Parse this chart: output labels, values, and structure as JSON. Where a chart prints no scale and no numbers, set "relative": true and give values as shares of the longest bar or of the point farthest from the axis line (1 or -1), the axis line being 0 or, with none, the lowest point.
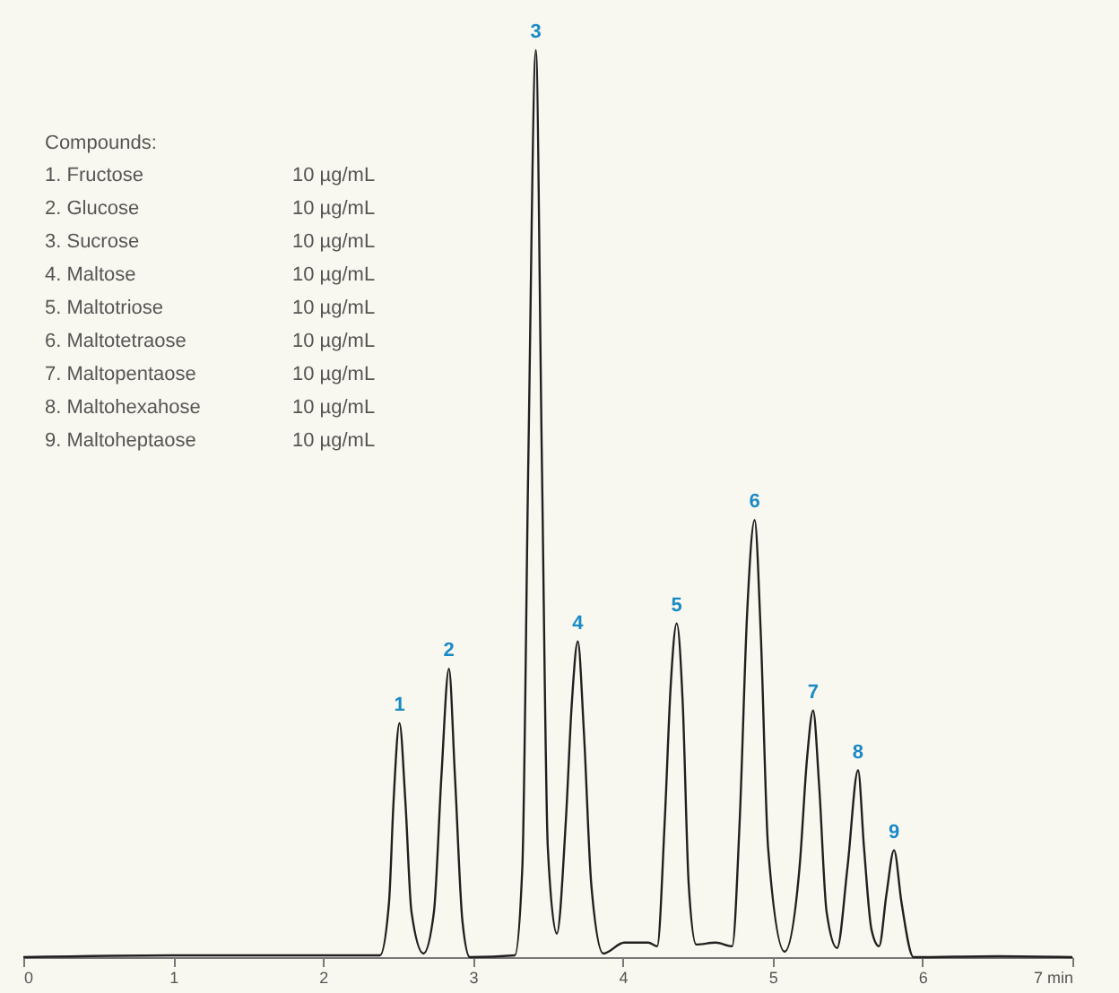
{
  "chart_data": {
    "type": "line",
    "relative": true,
    "tick_labels": "x",
    "x": [
      0,
      1.0,
      2.0,
      2.38,
      2.44,
      2.47,
      2.51,
      2.55,
      2.59,
      2.67,
      2.74,
      2.79,
      2.84,
      2.88,
      2.93,
      2.98,
      3.28,
      3.33,
      3.37,
      3.42,
      3.46,
      3.5,
      3.56,
      3.62,
      3.66,
      3.7,
      3.74,
      3.79,
      3.87,
      4.01,
      4.17,
      4.23,
      4.28,
      4.32,
      4.36,
      4.4,
      4.44,
      4.49,
      4.62,
      4.73,
      4.78,
      4.83,
      4.88,
      4.92,
      4.97,
      5.08,
      5.18,
      5.23,
      5.27,
      5.31,
      5.36,
      5.43,
      5.5,
      5.57,
      5.61,
      5.66,
      5.71,
      5.76,
      5.81,
      5.86,
      5.94,
      6.5,
      7
    ],
    "series": [
      {
        "color": "#231f20",
        "values": [
          0,
          0.002,
          0.002,
          0.002,
          0.06,
          0.17,
          0.258,
          0.17,
          0.05,
          0.004,
          0.05,
          0.2,
          0.318,
          0.2,
          0.04,
          0,
          0.002,
          0.1,
          0.55,
          1.0,
          0.55,
          0.12,
          0.026,
          0.15,
          0.28,
          0.348,
          0.25,
          0.08,
          0.004,
          0.016,
          0.016,
          0.012,
          0.15,
          0.3,
          0.368,
          0.28,
          0.08,
          0.014,
          0.016,
          0.012,
          0.15,
          0.38,
          0.482,
          0.36,
          0.12,
          0.006,
          0.1,
          0.22,
          0.272,
          0.19,
          0.05,
          0.01,
          0.1,
          0.206,
          0.12,
          0.03,
          0.012,
          0.07,
          0.118,
          0.06,
          0,
          0.001,
          0
        ]
      }
    ],
    "xlim": [
      0,
      7
    ],
    "xticks": [
      0,
      1,
      2,
      3,
      4,
      5,
      6,
      {
        "value": 7,
        "label": "7 min"
      }
    ],
    "annotations": [
      {
        "text": "1",
        "x": 2.51,
        "y": 0.258
      },
      {
        "text": "2",
        "x": 2.84,
        "y": 0.318
      },
      {
        "text": "3",
        "x": 3.42,
        "y": 1.0
      },
      {
        "text": "4",
        "x": 3.7,
        "y": 0.348
      },
      {
        "text": "5",
        "x": 4.36,
        "y": 0.368
      },
      {
        "text": "6",
        "x": 4.88,
        "y": 0.482
      },
      {
        "text": "7",
        "x": 5.27,
        "y": 0.272
      },
      {
        "text": "8",
        "x": 5.57,
        "y": 0.206
      },
      {
        "text": "9",
        "x": 5.81,
        "y": 0.118
      },
      "Compounds:",
      "1. Fructose",
      "10 µg/mL",
      "2. Glucose",
      "10 µg/mL",
      "3. Sucrose",
      "10 µg/mL",
      "4. Maltose",
      "10 µg/mL",
      "5. Maltotriose",
      "10 µg/mL",
      "6. Maltotetraose",
      "10 µg/mL",
      "7. Maltopentaose",
      "10 µg/mL",
      "8. Maltohexahose",
      "10 µg/mL",
      "9. Maltoheptaose",
      "10 µg/mL"
    ]
  }
}
